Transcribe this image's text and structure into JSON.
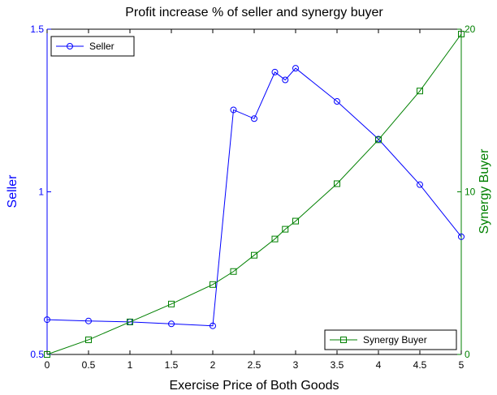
{
  "chart_data": {
    "type": "line",
    "title": "Profit increase % of seller and synergy buyer",
    "xlabel": "Exercise Price of Both Goods",
    "ylabel_left": "Seller",
    "ylabel_right": "Synergy Buyer",
    "xlim": [
      0,
      5
    ],
    "ylim_left": [
      0.5,
      1.5
    ],
    "ylim_right": [
      0,
      20
    ],
    "x_ticks": [
      "0",
      "0.5",
      "1",
      "1.5",
      "2",
      "2.5",
      "3",
      "3.5",
      "4",
      "4.5",
      "5"
    ],
    "y_left_ticks": [
      "0.5",
      "1",
      "1.5"
    ],
    "y_right_ticks": [
      "0",
      "10",
      "20"
    ],
    "grid": false,
    "series": [
      {
        "name": "Seller",
        "axis": "left",
        "color": "#0000ff",
        "marker": "circle",
        "legend_position": "top-left",
        "x": [
          0,
          0.5,
          1,
          1.5,
          2,
          2.25,
          2.5,
          2.75,
          2.875,
          3,
          3.5,
          4,
          4.5,
          5
        ],
        "y": [
          0.607,
          0.603,
          0.6,
          0.594,
          0.588,
          1.252,
          1.225,
          1.368,
          1.344,
          1.38,
          1.278,
          1.162,
          1.022,
          0.862
        ]
      },
      {
        "name": "Synergy Buyer",
        "axis": "right",
        "color": "#008000",
        "marker": "square",
        "legend_position": "bottom-right",
        "x": [
          0,
          0.5,
          1,
          1.5,
          2,
          2.25,
          2.5,
          2.75,
          2.875,
          3,
          3.5,
          4,
          4.5,
          5
        ],
        "y": [
          0.0,
          0.9,
          2.0,
          3.1,
          4.3,
          5.1,
          6.1,
          7.1,
          7.7,
          8.2,
          10.5,
          13.2,
          16.2,
          19.7
        ]
      }
    ]
  }
}
